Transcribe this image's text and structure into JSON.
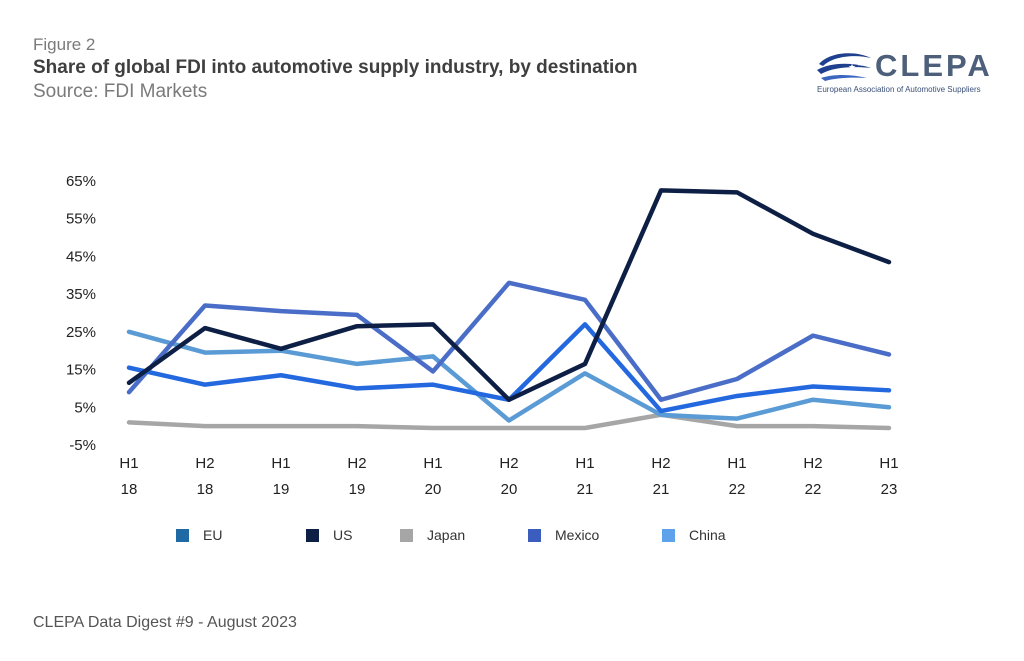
{
  "header": {
    "figure_label": "Figure 2",
    "title": "Share of global FDI into automotive supply industry, by destination",
    "source": "Source: FDI Markets"
  },
  "logo": {
    "name": "CLEPA",
    "subtitle": "European Association of Automotive Suppliers"
  },
  "footer": {
    "text": "CLEPA Data Digest #9 - August 2023"
  },
  "chart_data": {
    "type": "line",
    "categories": [
      [
        "H1",
        "18"
      ],
      [
        "H2",
        "18"
      ],
      [
        "H1",
        "19"
      ],
      [
        "H2",
        "19"
      ],
      [
        "H1",
        "20"
      ],
      [
        "H2",
        "20"
      ],
      [
        "H1",
        "21"
      ],
      [
        "H2",
        "21"
      ],
      [
        "H1",
        "22"
      ],
      [
        "H2",
        "22"
      ],
      [
        "H1",
        "23"
      ]
    ],
    "y_ticks": [
      "65%",
      "55%",
      "45%",
      "35%",
      "25%",
      "15%",
      "5%",
      "-5%"
    ],
    "ylim": [
      -5,
      65
    ],
    "grid": false,
    "legend_placement": "bottom",
    "series": [
      {
        "name": "EU",
        "legend_color": "#1f6aa5",
        "line_color": "#2468e0",
        "values": [
          15.5,
          11,
          13.5,
          10,
          11,
          7,
          27,
          4,
          8,
          10.5,
          9.5
        ]
      },
      {
        "name": "US",
        "legend_color": "#0e1f45",
        "line_color": "#0e1f45",
        "values": [
          11.5,
          26,
          20.5,
          26.5,
          27,
          7,
          16.5,
          62.5,
          62,
          51,
          43.5
        ]
      },
      {
        "name": "Japan",
        "legend_color": "#a6a6a6",
        "line_color": "#a6a6a6",
        "values": [
          1,
          0,
          0,
          0,
          -0.5,
          -0.5,
          -0.5,
          3,
          0,
          0,
          -0.5
        ]
      },
      {
        "name": "Mexico",
        "legend_color": "#3b5dbd",
        "line_color": "#4a6dc7",
        "values": [
          9,
          32,
          30.5,
          29.5,
          14.5,
          38,
          33.5,
          7,
          12.5,
          24,
          19
        ]
      },
      {
        "name": "China",
        "legend_color": "#5ea2ec",
        "line_color": "#5a9bd5",
        "values": [
          25,
          19.5,
          20,
          16.5,
          18.5,
          1.5,
          14,
          3,
          2,
          7,
          5
        ]
      }
    ]
  }
}
